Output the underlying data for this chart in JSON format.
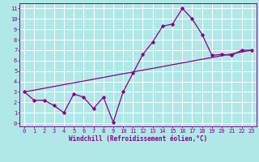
{
  "x": [
    0,
    1,
    2,
    3,
    4,
    5,
    6,
    7,
    8,
    9,
    10,
    11,
    12,
    13,
    14,
    15,
    16,
    17,
    18,
    19,
    20,
    21,
    22,
    23
  ],
  "y_main": [
    3.0,
    2.2,
    2.2,
    1.7,
    1.0,
    2.8,
    2.5,
    1.4,
    2.5,
    0.1,
    3.0,
    4.8,
    6.6,
    7.8,
    9.3,
    9.5,
    11.0,
    10.0,
    8.5,
    6.5,
    6.6,
    6.5,
    7.0,
    7.0
  ],
  "y_trend": [
    3.0,
    3.17,
    3.35,
    3.52,
    3.7,
    3.87,
    4.04,
    4.22,
    4.39,
    4.57,
    4.74,
    4.91,
    5.09,
    5.26,
    5.43,
    5.61,
    5.78,
    5.96,
    6.13,
    6.3,
    6.48,
    6.65,
    6.83,
    7.0
  ],
  "line_color": "#880088",
  "bg_color": "#b0e8e8",
  "xlabel": "Windchill (Refroidissement éolien,°C)",
  "xlim": [
    -0.5,
    23.5
  ],
  "ylim": [
    -0.3,
    11.5
  ],
  "xticks": [
    0,
    1,
    2,
    3,
    4,
    5,
    6,
    7,
    8,
    9,
    10,
    11,
    12,
    13,
    14,
    15,
    16,
    17,
    18,
    19,
    20,
    21,
    22,
    23
  ],
  "yticks": [
    0,
    1,
    2,
    3,
    4,
    5,
    6,
    7,
    8,
    9,
    10,
    11
  ],
  "marker": "D",
  "markersize": 1.8,
  "linewidth": 0.9,
  "tick_fontsize": 5.0,
  "xlabel_fontsize": 5.5
}
